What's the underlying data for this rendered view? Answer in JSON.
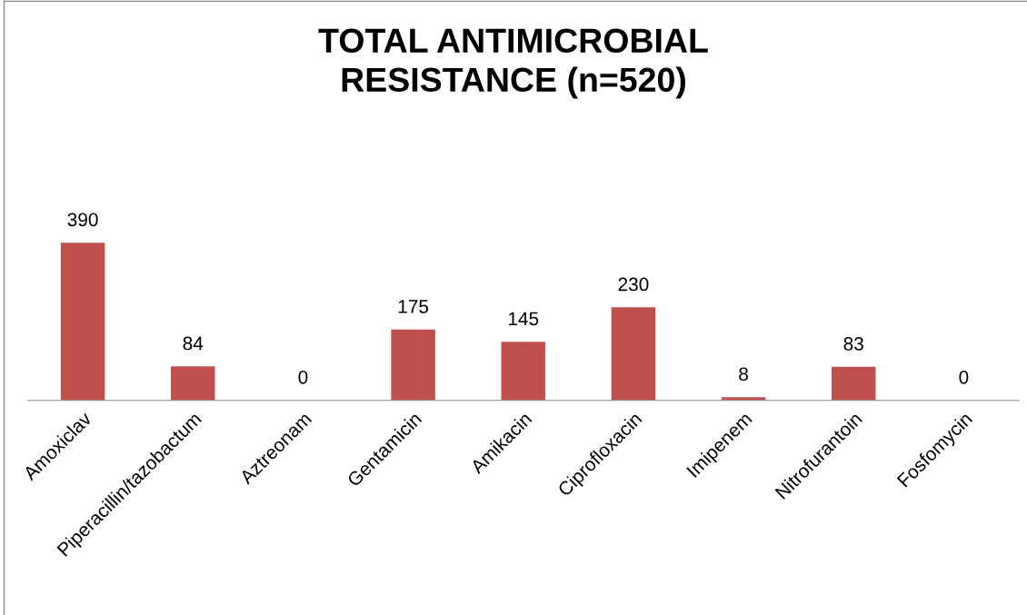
{
  "chart_data": {
    "type": "bar",
    "title": "TOTAL ANTIMICROBIAL\nRESISTANCE (n=520)",
    "categories": [
      "Amoxiclav",
      "Piperacillin/tazobactum",
      "Aztreonam",
      "Gentamicin",
      "Amikacin",
      "Ciprofloxacin",
      "Imipenem",
      "Nitrofurantoin",
      "Fosfomycin"
    ],
    "values": [
      390,
      84,
      0,
      175,
      145,
      230,
      8,
      83,
      0
    ],
    "color": "#c0504d",
    "data_labels": true
  }
}
